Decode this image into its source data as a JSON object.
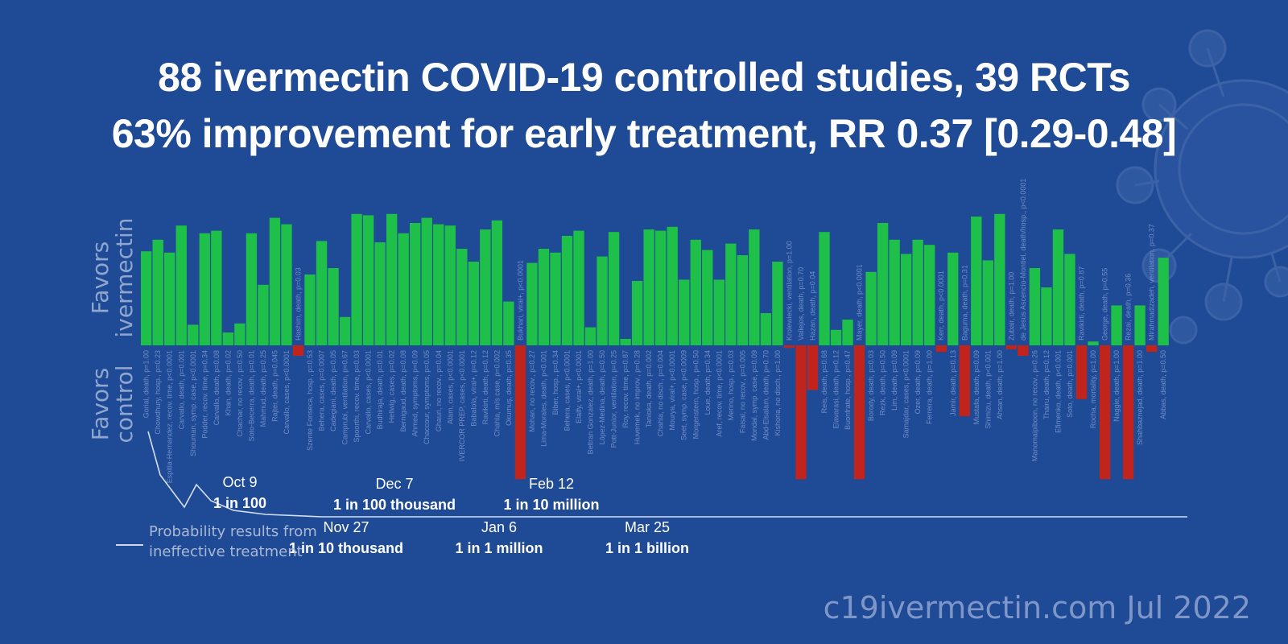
{
  "title": {
    "line1": "88 ivermectin COVID-19 controlled studies, 39 RCTs",
    "line2": "63% improvement for early treatment, RR 0.37 [0.29-0.48]"
  },
  "axis_labels": {
    "favors_ivermectin": [
      "Favors",
      "ivermectin"
    ],
    "favors_control": [
      "Favors",
      "control"
    ]
  },
  "colors": {
    "background": "#1f4a96",
    "positive_bar": "#1ec04a",
    "negative_bar": "#c0241c",
    "label_text": "#6f8fc7",
    "curve": "#d6dff0"
  },
  "milestones": [
    {
      "date": "Oct 9",
      "probability": "1 in 100"
    },
    {
      "date": "Nov 27",
      "probability": "1 in 10 thousand"
    },
    {
      "date": "Dec 7",
      "probability": "1 in 100 thousand"
    },
    {
      "date": "Jan 6",
      "probability": "1 in 1 million"
    },
    {
      "date": "Feb 12",
      "probability": "1 in 10 million"
    },
    {
      "date": "Mar 25",
      "probability": "1 in 1 billion"
    }
  ],
  "legend": {
    "label": "Probability results from ineffective treatment"
  },
  "footer": "c19ivermectin.com Jul 2022",
  "chart_data": {
    "type": "bar",
    "title": "88 ivermectin COVID-19 controlled studies, 39 RCTs",
    "subtitle": "63% improvement for early treatment, RR 0.37 [0.29-0.48]",
    "ylabel_positive": "Favors ivermectin",
    "ylabel_negative": "Favors control",
    "ylim": [
      -1,
      1
    ],
    "value_unit": "relative improvement (favors ivermectin positive)",
    "categories": [
      "Gorial, death, p=1.00",
      "Chowdhury, hosp., p=0.23",
      "Espitia-Hernandez, recov. time, p<0.0001",
      "Carvallo, death, p=0.001",
      "Shouman, symp. case, p<0.0001",
      "Podder, recov. time, p=0.34",
      "Carvallo, death, p=0.08",
      "Khan, death, p=0.02",
      "Chachar, no recov., p=0.50",
      "Soto-Becerra, death, p=0.01",
      "Mahmud, death, p=0.25",
      "Rajter, death, p=0.045",
      "Carvallo, cases, p<0.0001",
      "Hashim, death, p=0.03",
      "Szente Fonseca, hosp., p=0.53",
      "Behera, cases, p=0.0007",
      "Cadegiani, death, p=0.05",
      "Camprubi, ventilation, p=0.67",
      "Spoorthi, recov. time, p=0.03",
      "Carvallo, cases, p<0.0001",
      "Budhiraja, death, p=0.01",
      "Hellwig, cases, p=0.02",
      "Bernigaud, death, p=0.08",
      "Ahmed, symptoms, p=0.09",
      "Chaccour, symptoms, p=0.05",
      "Ghauri, no recov., p=0.04",
      "Alam, cases, p<0.0001",
      "IVERCOR PREP, cases, p<0.0001",
      "Babalola, viral+, p=0.12",
      "Ravikirti, death, p=0.12",
      "Chahla, m/s case, p=0.002",
      "Okumuş, death, p=0.35",
      "Bukhari, viral+, p<0.0001",
      "Mohan, no recov., p=0.27",
      "Lima-Morales, death, p<0.001",
      "Biber, hosp., p=0.34",
      "Behera, cases, p<0.0001",
      "Elalfy, viral+, p<0.0001",
      "Beltran Gonzalez, death, p=1.00",
      "López-Medina, death, p=0.50",
      "Pott-Junior, ventilation, p=0.25",
      "Roy, recov. time, p=0.87",
      "Huvemek, no improv., p=0.28",
      "Tanioka, death, p=0.002",
      "Chahla, no disch., p=0.004",
      "Mourya, viral+, p<0.0001",
      "Seet, symp. case, p<0.0009",
      "Morgenstern, hosp., p=0.50",
      "Loue, death, p=0.34",
      "Aref, recov. time, p<0.0001",
      "Merino, hosp., p=0.03",
      "Faisal, no recov., p=0.005",
      "Mondal, symp. case, p=0.09",
      "Abd-Elsalam, death, p=0.70",
      "Kishoria, no disch., p=1.00",
      "Krolewiecki, ventilation, p=1.00",
      "Vallejos, death, p=0.70",
      "Hazan, death, p=0.04",
      "Reis, death, p=0.68",
      "Elavarasi, death, p=0.12",
      "Buonfrate, hosp., p=0.47",
      "Mayer, death, p<0.0001",
      "Borody, death, p=0.03",
      "Rezk, death, p=0.50",
      "Lim, death, p=0.09",
      "Samajdar, cases, p<0.0001",
      "Ozer, death, p=0.09",
      "Ferreira, death, p=1.00",
      "Kerr, death, p<0.0001",
      "Jamir, death, p=0.13",
      "Baguma, death, p=0.31",
      "Mustafa, death, p=0.09",
      "Shimizu, death, p<0.001",
      "Ahsan, death, p=1.00",
      "Zubair, death, p=1.00",
      "de Jesús Ascencio-Montiel, death/hosp., p<0.0001",
      "Manomaipiboon, no recov., p=0.26",
      "Thairu, death, p=0.12",
      "Efimenko, death, p<0.001",
      "Soto, death, p=0.001",
      "Ravikirti, death, p=0.87",
      "Rocha, mortality, p=1.00",
      "George, death, p=0.55",
      "Naggie, death, p=1.00",
      "Rezai, death, p=0.36",
      "Shahbaznejad, death, p=1.00",
      "Mirahmadizadeh, ventilation, p=0.37",
      "Abbas, death, p=0.50"
    ],
    "values": [
      0.73,
      0.82,
      0.72,
      0.93,
      0.16,
      0.87,
      0.89,
      0.1,
      0.17,
      0.87,
      0.47,
      0.99,
      0.94,
      -0.08,
      0.55,
      0.81,
      0.6,
      0.22,
      1.02,
      1.01,
      0.8,
      1.02,
      0.87,
      0.95,
      0.99,
      0.94,
      0.93,
      0.75,
      0.65,
      0.9,
      0.97,
      0.34,
      -1.02,
      0.64,
      0.75,
      0.72,
      0.85,
      0.89,
      0.14,
      0.69,
      0.88,
      0.05,
      0.5,
      0.9,
      0.89,
      0.92,
      0.51,
      0.82,
      0.74,
      0.51,
      0.79,
      0.7,
      0.9,
      0.25,
      0.65,
      -0.02,
      -1.02,
      -0.34,
      0.88,
      0.12,
      0.2,
      -1.02,
      0.57,
      0.95,
      0.82,
      0.71,
      0.82,
      0.78,
      -0.05,
      0.72,
      -0.54,
      1.0,
      0.66,
      1.02,
      -0.03,
      -0.08,
      0.6,
      0.45,
      0.9,
      0.71,
      -0.41,
      0.03,
      -1.02,
      0.31,
      -1.02,
      0.31,
      -0.05,
      0.68
    ]
  }
}
